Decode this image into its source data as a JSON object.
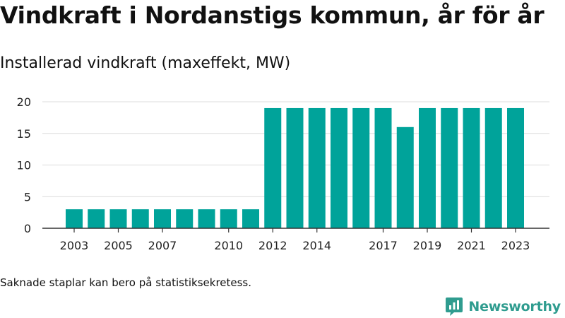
{
  "title": "Vindkraft i Nordanstigs kommun, år för år",
  "subtitle": "Installerad vindkraft (maxeffekt, MW)",
  "footnote": "Saknade staplar kan bero på statistiksekretess.",
  "brand": "Newsworthy",
  "colors": {
    "bar": "#00a39a",
    "grid": "#dcdcdc",
    "axis": "#333333",
    "brand": "#2f9c8f"
  },
  "chart_data": {
    "type": "bar",
    "title": "Vindkraft i Nordanstigs kommun, år för år",
    "subtitle": "Installerad vindkraft (maxeffekt, MW)",
    "xlabel": "",
    "ylabel": "",
    "ylim": [
      0,
      20
    ],
    "yticks": [
      0,
      5,
      10,
      15,
      20
    ],
    "grid": true,
    "categories": [
      "2003",
      "2004",
      "2005",
      "2006",
      "2007",
      "2008",
      "2009",
      "2010",
      "2011",
      "2012",
      "2013",
      "2014",
      "2015",
      "2016",
      "2017",
      "2018",
      "2019",
      "2020",
      "2021",
      "2022",
      "2023"
    ],
    "xtick_labels": [
      "2003",
      "2005",
      "2007",
      "2010",
      "2012",
      "2014",
      "2017",
      "2019",
      "2021",
      "2023"
    ],
    "series": [
      {
        "values": [
          3,
          3,
          3,
          3,
          3,
          3,
          3,
          3,
          3,
          19,
          19,
          19,
          19,
          19,
          19,
          16,
          19,
          19,
          19,
          19,
          19
        ]
      }
    ]
  }
}
